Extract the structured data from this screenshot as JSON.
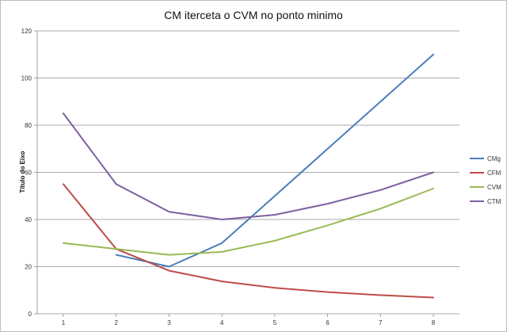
{
  "chart_data": {
    "type": "line",
    "title": "CM iterceta o CVM no ponto minimo",
    "xlabel": "",
    "ylabel": "Título do Eixo",
    "categories": [
      "1",
      "2",
      "3",
      "4",
      "5",
      "6",
      "7",
      "8"
    ],
    "ylim": [
      0,
      120
    ],
    "yticks": [
      0,
      20,
      40,
      60,
      80,
      100,
      120
    ],
    "grid": true,
    "legend_position": "right",
    "series": [
      {
        "name": "CMg",
        "color": "#4a7ebb",
        "values": [
          null,
          25,
          20,
          30,
          50,
          70,
          90,
          110
        ]
      },
      {
        "name": "CFM",
        "color": "#be4b48",
        "values": [
          55,
          27.5,
          18.3,
          13.75,
          11,
          9.2,
          7.9,
          6.9
        ]
      },
      {
        "name": "CVM",
        "color": "#98b954",
        "values": [
          30,
          27.5,
          25,
          26.25,
          31,
          37.5,
          44.6,
          53.1
        ]
      },
      {
        "name": "CTM",
        "color": "#7d60a0",
        "values": [
          85,
          55,
          43.3,
          40,
          42,
          46.7,
          52.5,
          60
        ]
      }
    ]
  }
}
